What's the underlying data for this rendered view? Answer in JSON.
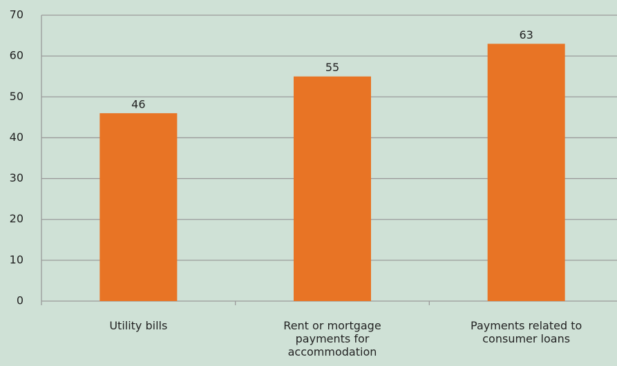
{
  "chart_data": {
    "type": "bar",
    "categories": [
      "Utility bills",
      "Rent or mortgage payments for accommodation",
      "Payments related to consumer loans"
    ],
    "values": [
      46,
      55,
      63
    ],
    "color": "#e87425",
    "ylim": [
      0,
      70
    ],
    "yticks": [
      0,
      10,
      20,
      30,
      40,
      50,
      60,
      70
    ],
    "grid": true,
    "data_labels": true
  }
}
